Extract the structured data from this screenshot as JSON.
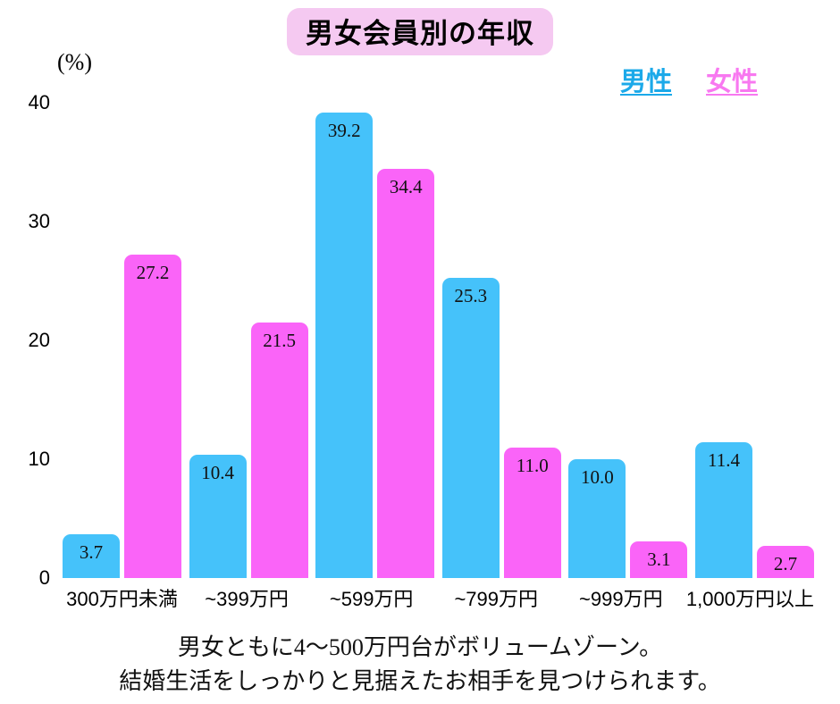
{
  "title": "男女会員別の年収",
  "y_axis_unit": "(%)",
  "legend": {
    "male": "男性",
    "female": "女性"
  },
  "colors": {
    "male_bar": "#45C2FA",
    "female_bar": "#FA64F8",
    "male_text": "#1BA9E9",
    "female_text": "#F878F0",
    "title_bg": "#F5C9F1"
  },
  "chart_data": {
    "type": "bar",
    "title": "男女会員別の年収",
    "ylabel": "(%)",
    "ylim": [
      0,
      40
    ],
    "yticks": [
      0,
      10,
      20,
      30,
      40
    ],
    "grid": false,
    "legend_position": "top-right",
    "categories": [
      "300万円未満",
      "~399万円",
      "~599万円",
      "~799万円",
      "~999万円",
      "1,000万円以上"
    ],
    "series": [
      {
        "name": "男性",
        "color": "#45C2FA",
        "values": [
          3.7,
          10.4,
          39.2,
          25.3,
          10.0,
          11.4
        ],
        "labels": [
          "3.7",
          "10.4",
          "39.2",
          "25.3",
          "10.0",
          "11.4"
        ]
      },
      {
        "name": "女性",
        "color": "#FA64F8",
        "values": [
          27.2,
          21.5,
          34.4,
          11.0,
          3.1,
          2.7
        ],
        "labels": [
          "27.2",
          "21.5",
          "34.4",
          "11.0",
          "3.1",
          "2.7"
        ]
      }
    ]
  },
  "footer": {
    "line1": "男女ともに4〜500万円台がボリュームゾーン。",
    "line2": "結婚生活をしっかりと見据えたお相手を見つけられます。"
  }
}
